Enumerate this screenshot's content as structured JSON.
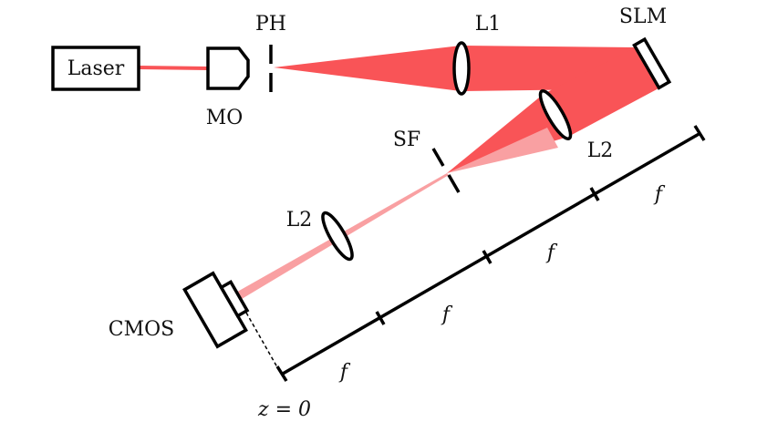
{
  "labels": {
    "laser": "Laser",
    "mo": "MO",
    "ph": "PH",
    "l1": "L1",
    "slm": "SLM",
    "sf": "SF",
    "l2_upper": "L2",
    "l2_lower": "L2",
    "cmos": "CMOS",
    "f1": "f",
    "f2": "f",
    "f3": "f",
    "f4": "f",
    "z0": "z = 0"
  },
  "colors": {
    "beam": "#f95457",
    "beam_light": "#f9a0a2",
    "outline": "#000000"
  }
}
